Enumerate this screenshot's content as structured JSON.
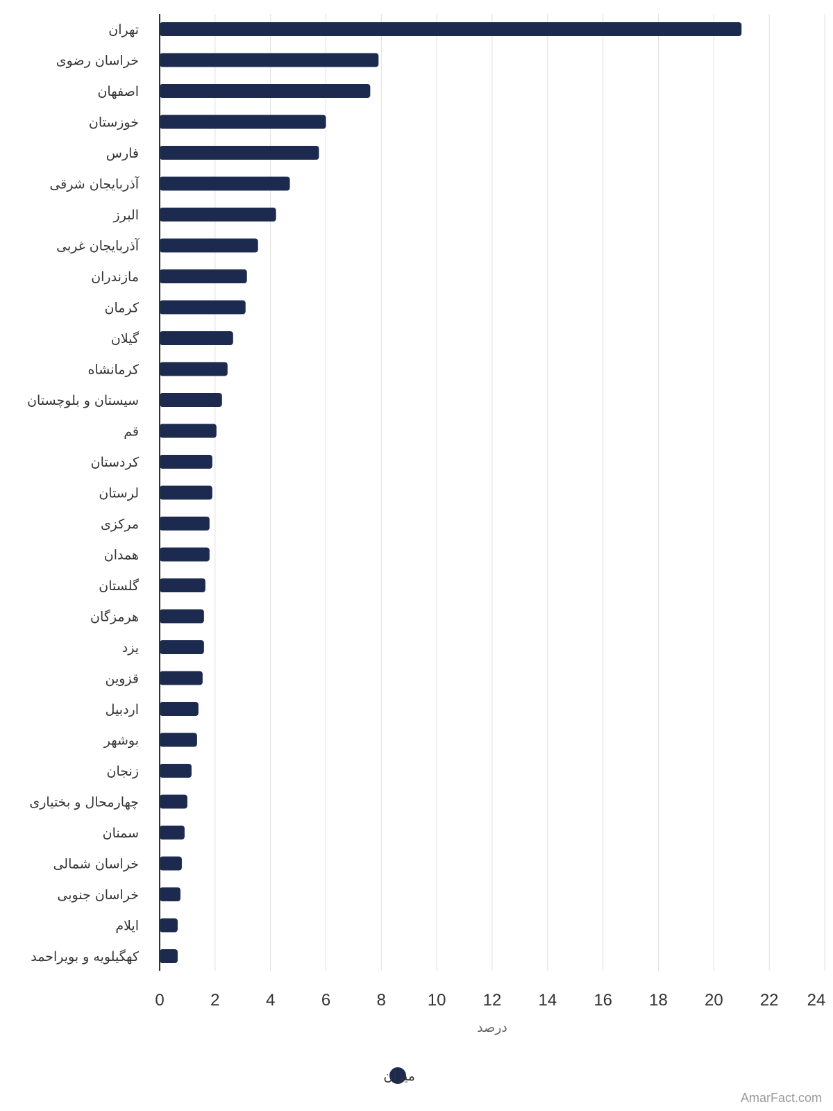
{
  "chart_data": {
    "type": "bar",
    "orientation": "horizontal",
    "categories": [
      "تهران",
      "خراسان رضوی",
      "اصفهان",
      "خوزستان",
      "فارس",
      "آذربایجان شرقی",
      "البرز",
      "آذربایجان غربی",
      "مازندران",
      "کرمان",
      "گیلان",
      "کرمانشاه",
      "سیستان و بلوچستان",
      "قم",
      "کردستان",
      "لرستان",
      "مرکزی",
      "همدان",
      "گلستان",
      "هرمزگان",
      "یزد",
      "قزوین",
      "اردبیل",
      "بوشهر",
      "زنجان",
      "چهارمحال و بختیاری",
      "سمنان",
      "خراسان شمالی",
      "خراسان جنوبی",
      "ایلام",
      "کهگیلویه و بویراحمد"
    ],
    "series": [
      {
        "name": "میزان",
        "color": "#1b2a4e",
        "values": [
          21.0,
          7.9,
          7.6,
          6.0,
          5.75,
          4.7,
          4.2,
          3.55,
          3.15,
          3.1,
          2.65,
          2.45,
          2.25,
          2.05,
          1.9,
          1.9,
          1.8,
          1.8,
          1.65,
          1.6,
          1.6,
          1.55,
          1.4,
          1.35,
          1.15,
          1.0,
          0.9,
          0.8,
          0.75,
          0.65,
          0.65
        ]
      }
    ],
    "xlabel": "درصد",
    "xlim": [
      0,
      24
    ],
    "xticks": [
      0,
      2,
      4,
      6,
      8,
      10,
      12,
      14,
      16,
      18,
      20,
      22,
      24
    ],
    "grid": true,
    "legend_position": "bottom-center"
  },
  "credit": "AmarFact.com",
  "colors": {
    "bar": "#1b2a4e",
    "grid": "#e0e0e0",
    "axis": "#333333"
  }
}
